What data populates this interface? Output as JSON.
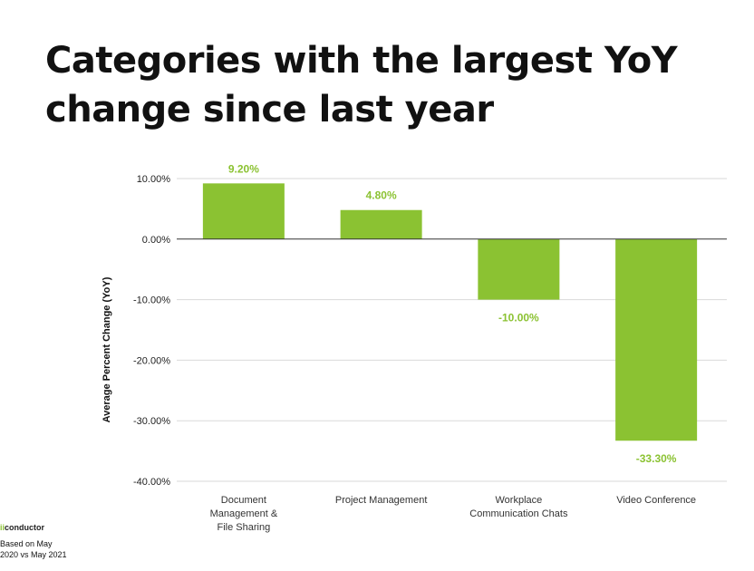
{
  "title_lines": [
    "Categories with the largest YoY",
    "change since last year"
  ],
  "chart_data": {
    "type": "bar",
    "title": "",
    "xlabel": "",
    "ylabel": "Average Percent Change (YoY)",
    "ylim": [
      -40,
      10
    ],
    "yticks": [
      10,
      0,
      -10,
      -20,
      -30,
      -40
    ],
    "ytick_labels": [
      "10.00%",
      "0.00%",
      "-10.00%",
      "-20.00%",
      "-30.00%",
      "-40.00%"
    ],
    "categories": [
      [
        "Document",
        "Management &",
        "File Sharing"
      ],
      [
        "Project Management"
      ],
      [
        "Workplace",
        "Communication Chats"
      ],
      [
        "Video Conference"
      ]
    ],
    "values": [
      9.2,
      4.8,
      -10.0,
      -33.3
    ],
    "data_labels": [
      "9.20%",
      "4.80%",
      "-10.00%",
      "-33.30%"
    ],
    "grid": true,
    "legend": "none"
  },
  "colors": {
    "bar": "#8bc232",
    "data_label": "#8bc232",
    "grid": "#d9d9d9",
    "zero_line": "#333333"
  },
  "footer": {
    "logo_mark": "ii",
    "logo_text": "conductor",
    "note": "Based on May\n2020 vs May 2021"
  }
}
